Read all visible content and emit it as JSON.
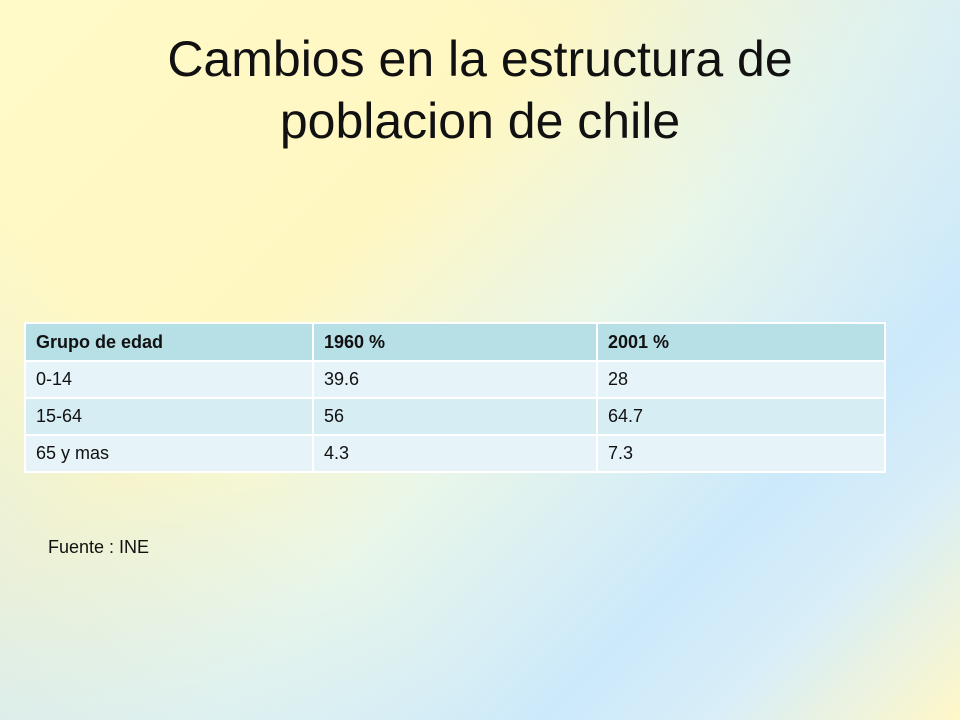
{
  "slide": {
    "title_line1": "Cambios en la estructura de",
    "title_line2": "poblacion de chile",
    "source": "Fuente : INE"
  },
  "table": {
    "headers": [
      "Grupo de edad",
      "1960 %",
      "2001 %"
    ],
    "rows": [
      [
        "0-14",
        "39.6",
        "28"
      ],
      [
        "15-64",
        "56",
        "64.7"
      ],
      [
        "65 y mas",
        "4.3",
        "7.3"
      ]
    ]
  },
  "colors": {
    "header_bg": "#b7dfe6",
    "row_bg": "#e6f3f8",
    "row_alt_bg": "#d6edf4"
  }
}
